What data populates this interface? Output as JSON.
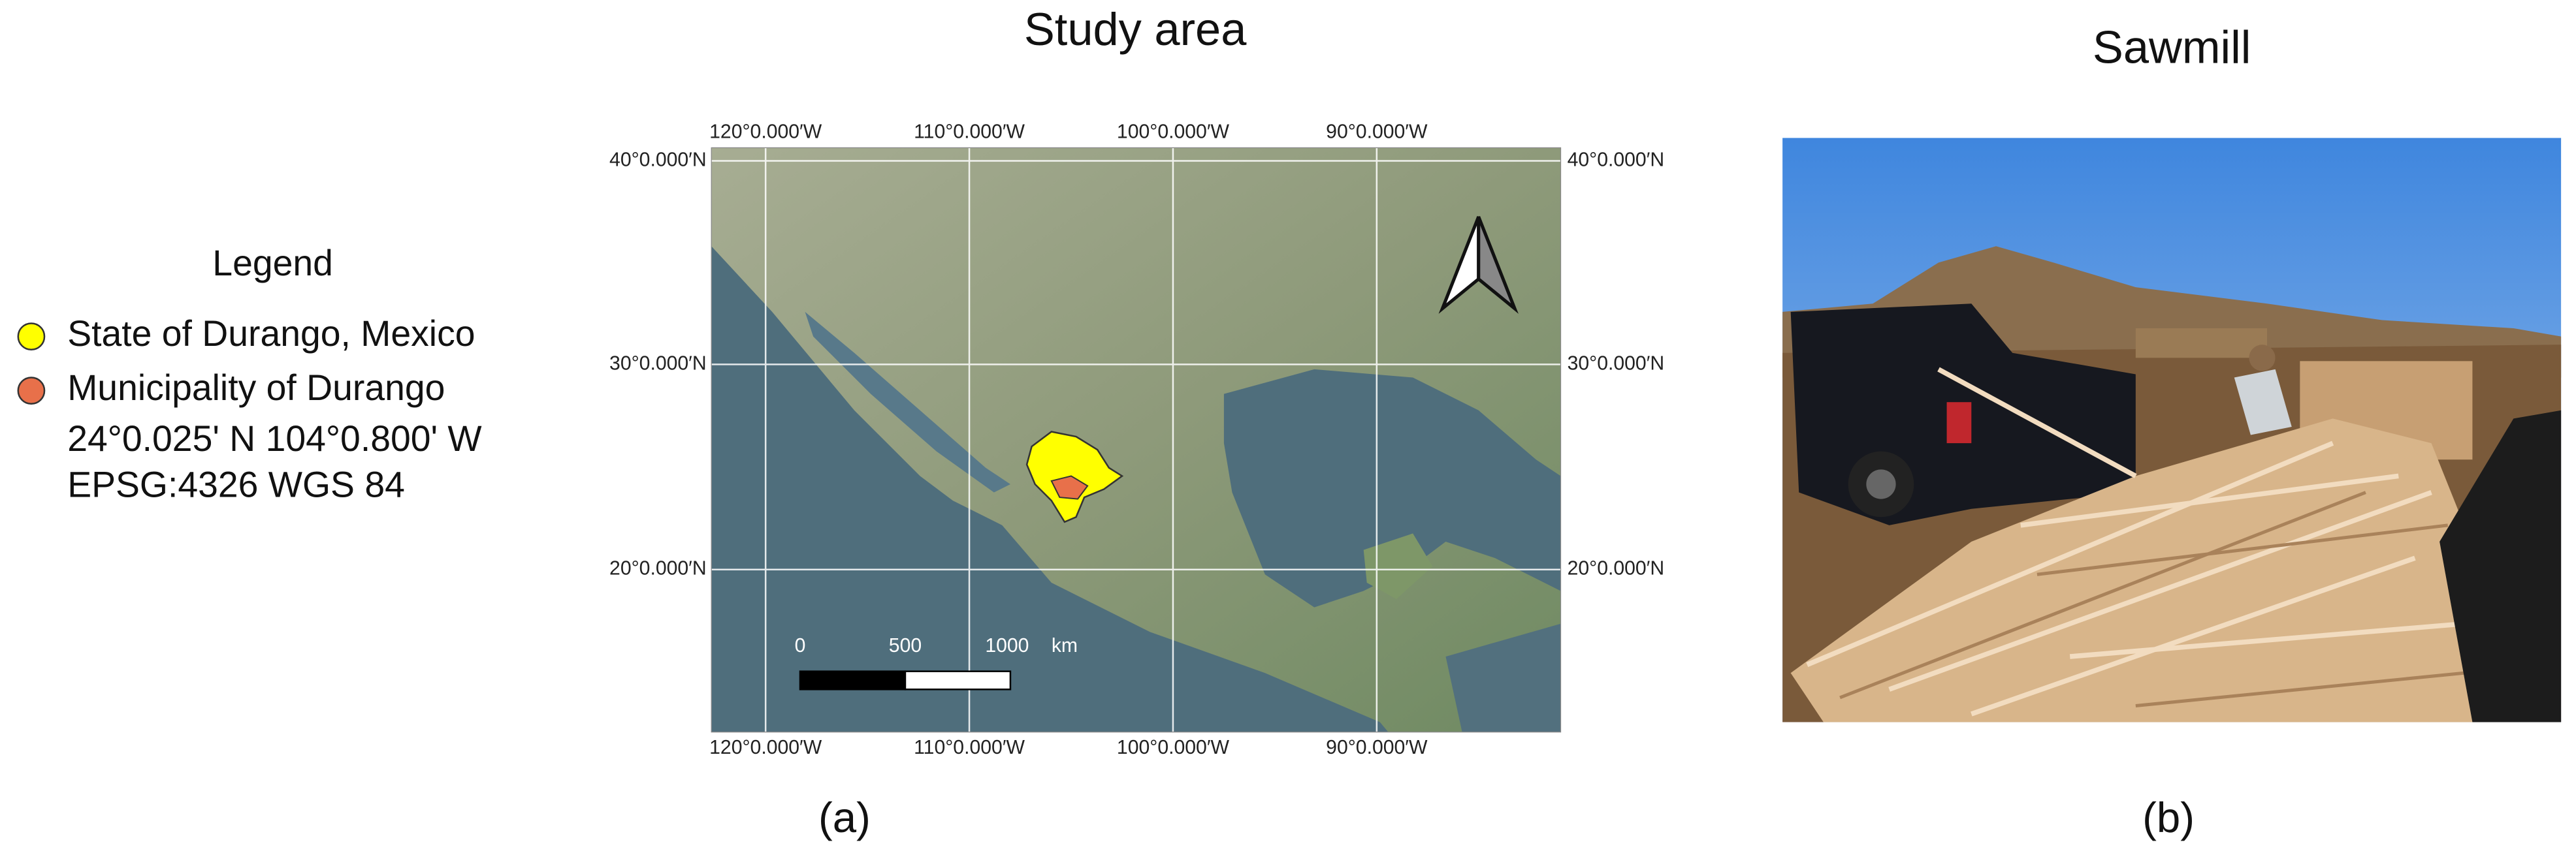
{
  "legend": {
    "title": "Legend",
    "items": [
      {
        "label": "State of Durango, Mexico",
        "color": "#ffff00"
      },
      {
        "label": "Municipality of Durango",
        "color": "#e8704a"
      }
    ],
    "coordinates": "24°0.025' N 104°0.800' W",
    "crs": "EPSG:4326 WGS 84"
  },
  "map": {
    "title": "Study area",
    "lon_labels": [
      "120°0.000′W",
      "110°0.000′W",
      "100°0.000′W",
      "90°0.000′W"
    ],
    "lat_labels": [
      "40°0.000′N",
      "30°0.000′N",
      "20°0.000′N"
    ],
    "scale_bar": {
      "labels": [
        "0",
        "500",
        "1000"
      ],
      "unit": "km"
    },
    "caption": "(a)"
  },
  "photo": {
    "title": "Sawmill",
    "caption": "(b)"
  }
}
